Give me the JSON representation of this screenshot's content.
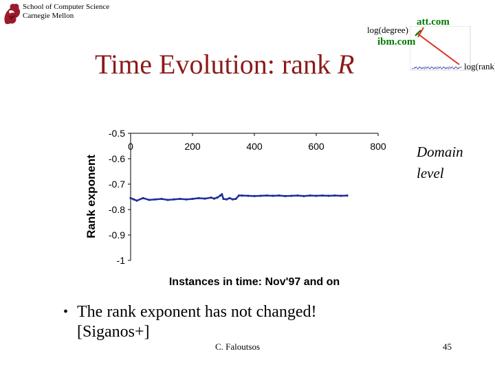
{
  "header": {
    "school": "School of Computer Science",
    "university": "Carnegie Mellon"
  },
  "title": {
    "main": "Time Evolution: rank",
    "variable": "R"
  },
  "inset": {
    "ylabel": "log(degree)",
    "xlabel": "log(rank)",
    "label_att": "att.com",
    "label_ibm": "ibm.com",
    "colors": {
      "arrow": "#e0301e",
      "label": "#007a00",
      "dots": "#1f2d9a"
    }
  },
  "side_note": {
    "line1": "Domain",
    "line2": "level"
  },
  "bullet": {
    "line1": "The rank exponent has not changed!",
    "line2": "[Siganos+]"
  },
  "footer": {
    "author": "C. Faloutsos",
    "page": "45"
  },
  "chart_data": {
    "type": "scatter",
    "xlabel": "Instances in time: Nov'97 and on",
    "ylabel": "Rank exponent",
    "xlim": [
      0,
      800
    ],
    "ylim": [
      -1,
      -0.5
    ],
    "x_ticks": [
      "0",
      "200",
      "400",
      "600",
      "800"
    ],
    "y_ticks": [
      "-0.5",
      "-0.6",
      "-0.7",
      "-0.8",
      "-0.9",
      "-1"
    ],
    "x_axis_position": "top",
    "grid": false,
    "color": "#1f2d9a",
    "series": [
      {
        "x": [
          0,
          10,
          20,
          40,
          60,
          80,
          100,
          120,
          140,
          160,
          180,
          200,
          220,
          240,
          260,
          270,
          280,
          290,
          295,
          300,
          310,
          320,
          330,
          340,
          350,
          360,
          380,
          400,
          420,
          440,
          460,
          480,
          500,
          520,
          540,
          560,
          580,
          600,
          620,
          640,
          660,
          680,
          700
        ],
        "y": [
          -0.755,
          -0.76,
          -0.765,
          -0.755,
          -0.762,
          -0.76,
          -0.758,
          -0.762,
          -0.76,
          -0.758,
          -0.76,
          -0.758,
          -0.755,
          -0.757,
          -0.753,
          -0.757,
          -0.753,
          -0.745,
          -0.74,
          -0.758,
          -0.76,
          -0.755,
          -0.76,
          -0.758,
          -0.745,
          -0.745,
          -0.746,
          -0.747,
          -0.746,
          -0.745,
          -0.746,
          -0.745,
          -0.747,
          -0.746,
          -0.745,
          -0.747,
          -0.745,
          -0.746,
          -0.745,
          -0.746,
          -0.745,
          -0.746,
          -0.745
        ]
      }
    ]
  }
}
